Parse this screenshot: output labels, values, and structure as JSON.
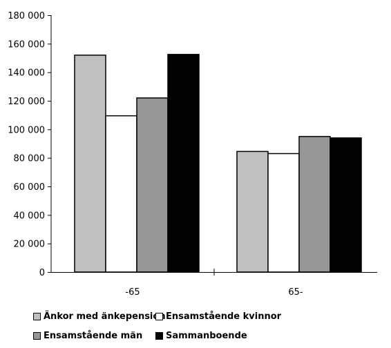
{
  "chart_data": {
    "type": "bar",
    "title": "",
    "xlabel": "",
    "ylabel": "",
    "categories": [
      "-65",
      "65-"
    ],
    "ylim": [
      0,
      180000
    ],
    "yticks": [
      0,
      20000,
      40000,
      60000,
      80000,
      100000,
      120000,
      140000,
      160000,
      180000
    ],
    "ytick_labels": [
      "0",
      "20 000",
      "40 000",
      "60 000",
      "80 000",
      "100 000",
      "120 000",
      "140 000",
      "160 000",
      "180 000"
    ],
    "grid": false,
    "legend_position": "bottom",
    "series": [
      {
        "name": "Änkor med änkepension",
        "color": "#c0c0c0",
        "values": [
          152000,
          84500
        ]
      },
      {
        "name": "Ensamstående kvinnor",
        "color": "#ffffff",
        "values": [
          109500,
          83000
        ]
      },
      {
        "name": "Ensamstående män",
        "color": "#969696",
        "values": [
          122000,
          95000
        ]
      },
      {
        "name": "Sammanboende",
        "color": "#000000",
        "values": [
          152500,
          94000
        ]
      }
    ]
  }
}
